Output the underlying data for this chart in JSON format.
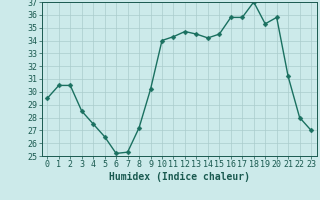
{
  "x": [
    0,
    1,
    2,
    3,
    4,
    5,
    6,
    7,
    8,
    9,
    10,
    11,
    12,
    13,
    14,
    15,
    16,
    17,
    18,
    19,
    20,
    21,
    22,
    23
  ],
  "y": [
    29.5,
    30.5,
    30.5,
    28.5,
    27.5,
    26.5,
    25.2,
    25.3,
    27.2,
    30.2,
    34.0,
    34.3,
    34.7,
    34.5,
    34.2,
    34.5,
    35.8,
    35.8,
    37.0,
    35.3,
    35.8,
    31.2,
    28.0,
    27.0
  ],
  "line_color": "#1a7060",
  "marker": "D",
  "marker_size": 2.5,
  "bg_color": "#cceaea",
  "grid_color": "#aacccc",
  "xlabel": "Humidex (Indice chaleur)",
  "ylim": [
    25,
    37
  ],
  "xlim_min": -0.5,
  "xlim_max": 23.5,
  "yticks": [
    25,
    26,
    27,
    28,
    29,
    30,
    31,
    32,
    33,
    34,
    35,
    36,
    37
  ],
  "xticks": [
    0,
    1,
    2,
    3,
    4,
    5,
    6,
    7,
    8,
    9,
    10,
    11,
    12,
    13,
    14,
    15,
    16,
    17,
    18,
    19,
    20,
    21,
    22,
    23
  ],
  "xlabel_fontsize": 7,
  "tick_fontsize": 6,
  "tick_color": "#1a5a50",
  "line_width": 1.0
}
